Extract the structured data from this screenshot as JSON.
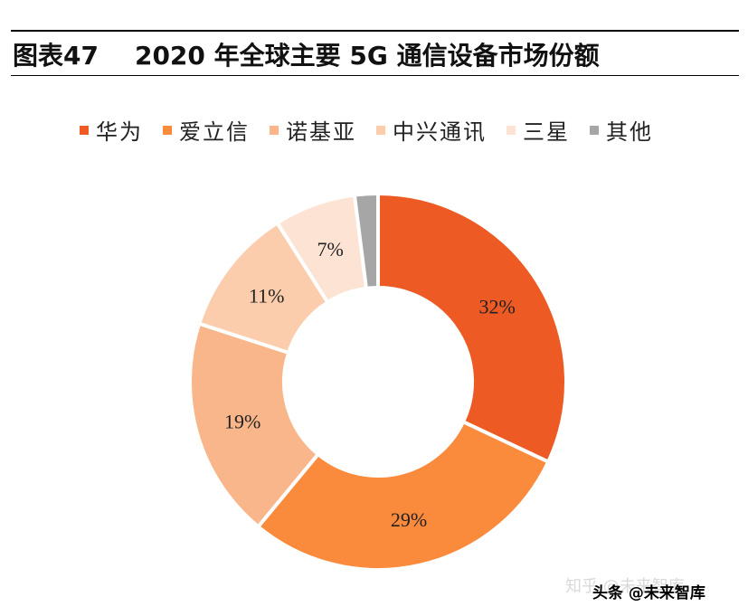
{
  "figure": {
    "label": "图表47",
    "title": "2020 年全球主要 5G 通信设备市场份额"
  },
  "chart_data": {
    "type": "pie",
    "style": "donut",
    "title": "2020 年全球主要 5G 通信设备市场份额",
    "legend_position": "top",
    "categories": [
      "华为",
      "爱立信",
      "诺基亚",
      "中兴通讯",
      "三星",
      "其他"
    ],
    "values": [
      32,
      29,
      19,
      11,
      7,
      2
    ],
    "unit": "%",
    "data_labels": [
      "32%",
      "29%",
      "19%",
      "11%",
      "7%",
      ""
    ],
    "colors": [
      "#ee5a24",
      "#fa8a3c",
      "#f9b68b",
      "#fbcdad",
      "#fde3d3",
      "#a6a6a6"
    ]
  },
  "watermark": {
    "text1": "知乎 @未来智库",
    "text2": "头条 @未来智库"
  }
}
